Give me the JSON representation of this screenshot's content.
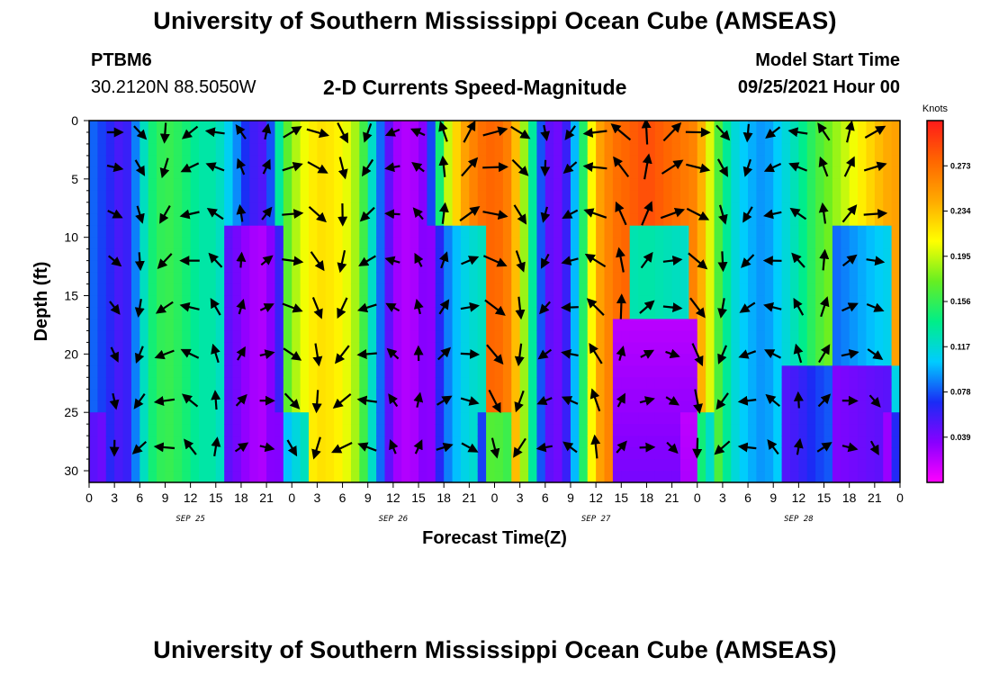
{
  "header": {
    "title": "University of Southern Mississippi Ocean Cube (AMSEAS)",
    "station": "PTBM6",
    "coords": "30.2120N  88.5050W",
    "product": "2-D Currents Speed-Magnitude",
    "model_start_label": "Model Start Time",
    "model_start_value": "09/25/2021 Hour 00"
  },
  "footer": {
    "title": "University of Southern Mississippi Ocean Cube (AMSEAS)"
  },
  "chart_data": {
    "type": "heatmap",
    "title": "2-D Currents Speed-Magnitude",
    "xlabel": "Forecast Time(Z)",
    "ylabel": "Depth (ft)",
    "x_ticks": [
      "0",
      "3",
      "6",
      "9",
      "12",
      "15",
      "18",
      "21",
      "0",
      "3",
      "6",
      "9",
      "12",
      "15",
      "18",
      "21",
      "0",
      "3",
      "6",
      "9",
      "12",
      "15",
      "18",
      "21",
      "0",
      "3",
      "6",
      "9",
      "12",
      "15",
      "18",
      "21",
      "0"
    ],
    "x_dates": [
      {
        "label": "SEP 25",
        "hour_index": 12
      },
      {
        "label": "SEP 26",
        "hour_index": 36
      },
      {
        "label": "SEP 27",
        "hour_index": 60
      },
      {
        "label": "SEP 28",
        "hour_index": 84
      }
    ],
    "xlim_hours": [
      0,
      96
    ],
    "y_ticks": [
      0,
      5,
      10,
      15,
      20,
      25,
      30
    ],
    "ylim_ft": [
      0,
      31
    ],
    "y_inverted": true,
    "colorbar": {
      "unit": "Knots",
      "ticks": [
        0.273,
        0.234,
        0.195,
        0.156,
        0.117,
        0.078,
        0.039
      ],
      "range": [
        0,
        0.312
      ],
      "colors": [
        "#ff00ff",
        "#8800ff",
        "#1a2cf5",
        "#00ccff",
        "#00ee88",
        "#66ee22",
        "#ffff00",
        "#ffaa00",
        "#ff6600",
        "#ff1a1a"
      ]
    },
    "speed_scale_note": "hourly columns of current speed (knots) vs depth; values estimated from color",
    "depth_levels_ft": [
      0,
      3,
      6,
      9,
      12,
      15,
      18,
      21,
      24,
      27,
      30
    ],
    "arrow_hours": [
      3,
      6,
      9,
      12,
      15,
      18,
      21,
      24,
      27,
      30,
      33,
      36,
      39,
      42,
      45,
      48,
      51,
      54,
      57,
      60,
      63,
      66,
      69,
      72,
      75,
      78,
      81,
      84,
      87,
      90,
      93
    ],
    "arrow_depths_ft": [
      1,
      4,
      8,
      12,
      16,
      20,
      24,
      28
    ],
    "series": [
      {
        "hours": [
          0,
          2,
          4,
          5,
          7,
          9,
          11,
          13,
          15,
          17,
          19,
          21,
          23,
          25,
          27,
          28,
          30,
          32,
          34,
          36,
          38,
          40,
          42,
          44,
          46,
          48,
          50,
          52,
          54,
          56,
          58,
          60,
          62,
          64,
          66,
          68,
          70,
          72,
          74,
          76,
          78,
          80,
          82,
          84,
          86,
          88,
          90,
          92,
          94,
          96
        ],
        "surface_speed": [
          0.085,
          0.07,
          0.05,
          0.07,
          0.14,
          0.16,
          0.15,
          0.13,
          0.13,
          0.1,
          0.06,
          0.05,
          0.16,
          0.2,
          0.22,
          0.22,
          0.21,
          0.18,
          0.1,
          0.03,
          0.02,
          0.04,
          0.18,
          0.24,
          0.27,
          0.28,
          0.26,
          0.16,
          0.05,
          0.04,
          0.12,
          0.24,
          0.27,
          0.28,
          0.29,
          0.28,
          0.27,
          0.26,
          0.18,
          0.12,
          0.1,
          0.09,
          0.11,
          0.13,
          0.16,
          0.18,
          0.2,
          0.22,
          0.24,
          0.25
        ]
      }
    ]
  }
}
